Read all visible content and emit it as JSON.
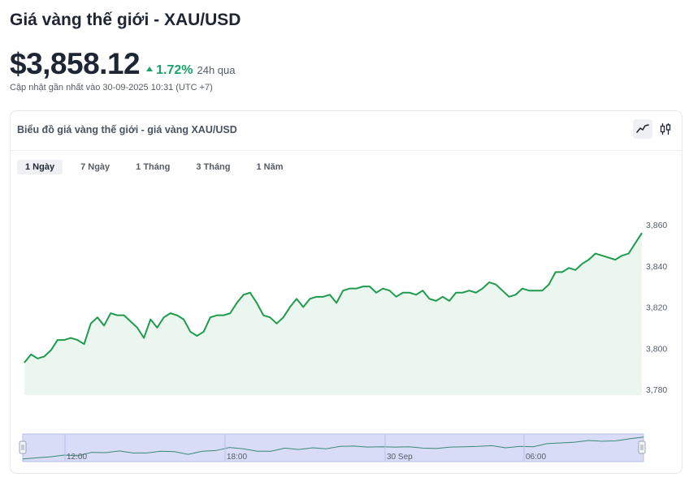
{
  "header": {
    "title": "Giá vàng thế giới - XAU/USD",
    "price": "$3,858.12",
    "change_pct": "1.72%",
    "change_period": "24h qua",
    "updated": "Cập nhật gần nhất vào 30-09-2025 10:31 (UTC +7)"
  },
  "card": {
    "title": "Biểu đồ giá vàng thế giới - giá vàng XAU/USD",
    "chart_type_buttons": [
      {
        "name": "line-chart-icon",
        "active": true
      },
      {
        "name": "candlestick-chart-icon",
        "active": false
      }
    ],
    "range_tabs": [
      {
        "label": "1 Ngày",
        "active": true
      },
      {
        "label": "7 Ngày",
        "active": false
      },
      {
        "label": "1 Tháng",
        "active": false
      },
      {
        "label": "3 Tháng",
        "active": false
      },
      {
        "label": "1 Năm",
        "active": false
      }
    ]
  },
  "colors": {
    "up": "#1aa06a",
    "line": "#1f9a4f",
    "area_fill": "#eaf6ee",
    "navigator_fill": "#d8dcf6",
    "navigator_line": "#3a8a7a"
  },
  "chart_data": {
    "type": "area",
    "ylim": [
      3780,
      3865
    ],
    "yticks": [
      3780,
      3800,
      3820,
      3840,
      3860
    ],
    "ytick_labels": [
      "3,780",
      "3,800",
      "3,820",
      "3,840",
      "3,860"
    ],
    "x_axis_labels": [
      "12:00",
      "18:00",
      "30 Sep",
      "06:00"
    ],
    "series": [
      {
        "values": [
          3793,
          3797,
          3795,
          3796,
          3799,
          3804,
          3804,
          3805,
          3804,
          3802,
          3812,
          3815,
          3811,
          3817,
          3816,
          3816,
          3813,
          3810,
          3805,
          3814,
          3810,
          3815,
          3817,
          3816,
          3814,
          3808,
          3806,
          3808,
          3815,
          3816,
          3816,
          3817,
          3822,
          3826,
          3827,
          3822,
          3816,
          3815,
          3812,
          3815,
          3820,
          3824,
          3820,
          3824,
          3825,
          3825,
          3826,
          3822,
          3828,
          3829,
          3829,
          3830,
          3830,
          3827,
          3829,
          3828,
          3825,
          3827,
          3827,
          3826,
          3828,
          3824,
          3823,
          3825,
          3823,
          3827,
          3827,
          3828,
          3827,
          3829,
          3832,
          3831,
          3828,
          3825,
          3826,
          3829,
          3828,
          3828,
          3828,
          3831,
          3837,
          3837,
          3839,
          3838,
          3841,
          3843,
          3846,
          3845,
          3844,
          3843,
          3845,
          3846,
          3851,
          3856
        ]
      }
    ],
    "navigator_values": [
      3793,
      3796,
      3799,
      3804,
      3802,
      3812,
      3811,
      3816,
      3810,
      3810,
      3815,
      3814,
      3806,
      3815,
      3817,
      3826,
      3822,
      3815,
      3815,
      3824,
      3820,
      3825,
      3822,
      3829,
      3830,
      3827,
      3828,
      3827,
      3828,
      3824,
      3823,
      3827,
      3828,
      3829,
      3831,
      3825,
      3829,
      3828,
      3837,
      3839,
      3841,
      3846,
      3844,
      3845,
      3851,
      3856
    ]
  }
}
